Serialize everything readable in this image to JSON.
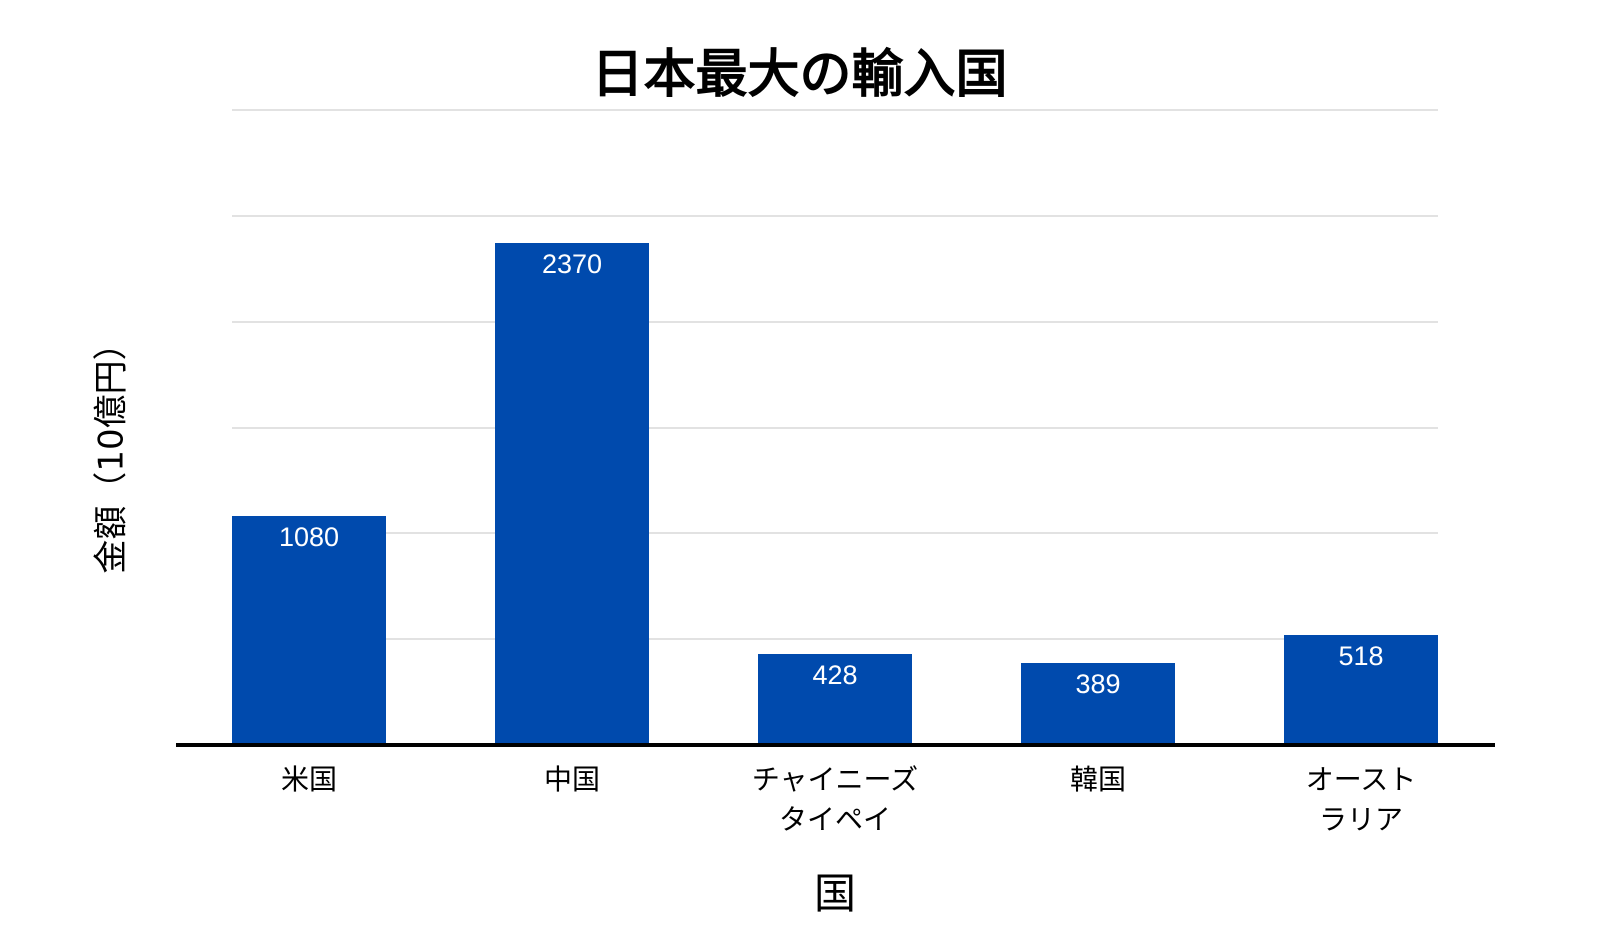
{
  "chart_data": {
    "type": "bar",
    "title": "日本最大の輸入国",
    "xlabel": "国",
    "ylabel": "金額（10億円）",
    "categories": [
      "米国",
      "中国",
      "チャイニーズ\nタイペイ",
      "韓国",
      "オースト\nラリア"
    ],
    "values": [
      1080,
      2370,
      428,
      389,
      518
    ],
    "value_labels": [
      "1080",
      "2370",
      "428",
      "389",
      "518"
    ],
    "ylim": [
      0,
      3000
    ],
    "gridlines": [
      500,
      1000,
      1500,
      2000,
      2500,
      3000
    ],
    "grid": true,
    "legend": "none",
    "bar_color": "#004aad",
    "label_color": "#ffffff"
  }
}
